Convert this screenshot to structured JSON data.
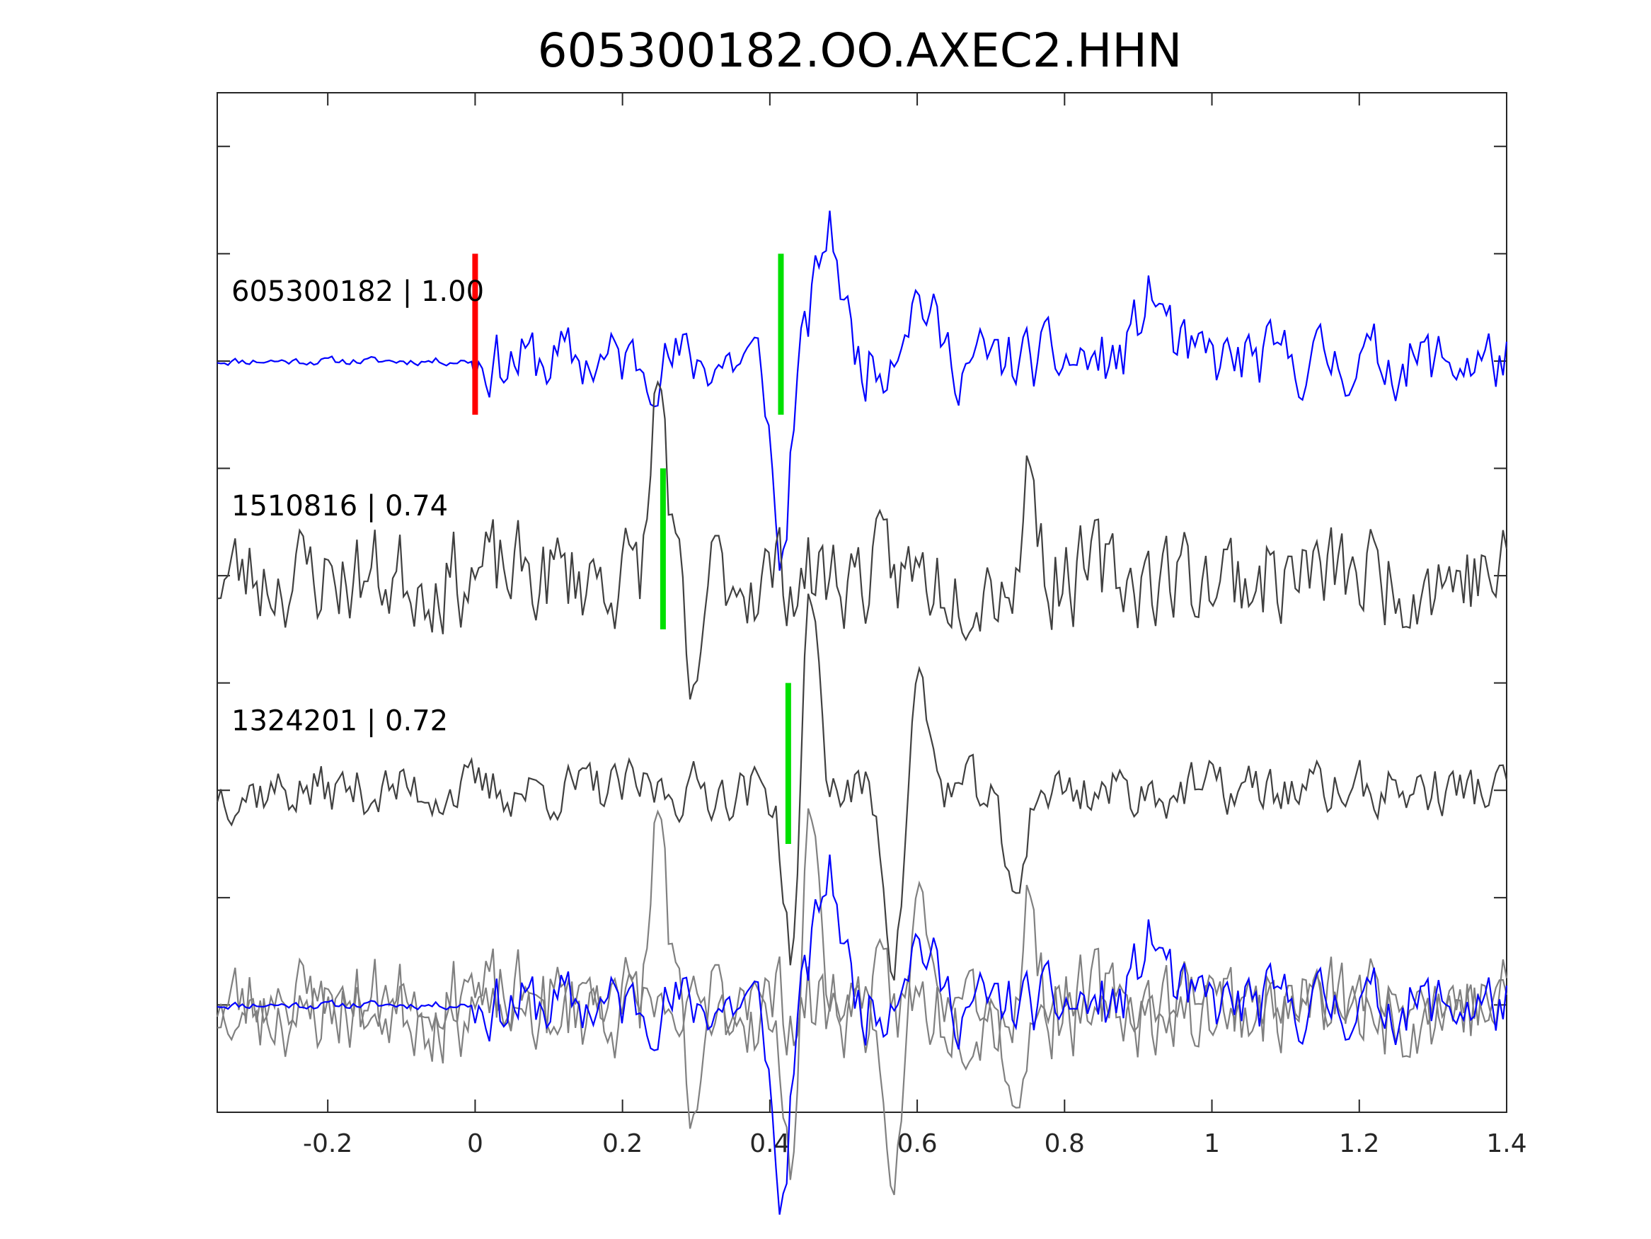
{
  "chart_data": {
    "type": "line",
    "title": "605300182.OO.AXEC2.HHN",
    "xlabel": "",
    "ylabel": "",
    "xlim": [
      -0.35,
      1.4
    ],
    "xticks": [
      -0.2,
      0,
      0.2,
      0.4,
      0.6,
      0.8,
      1,
      1.2,
      1.4
    ],
    "xtick_labels": [
      "-0.2",
      "0",
      "0.2",
      "0.4",
      "0.6",
      "0.8",
      "1",
      "1.2",
      "1.4"
    ],
    "grid": false,
    "legend": "none",
    "traces": [
      {
        "label": "605300182 | 1.00",
        "color": "#0000ff",
        "offset": 3,
        "seed": 11,
        "noise_amp": 0.25,
        "pre_noise_amp": 0.03,
        "onset": 0,
        "bursts": [
          {
            "t": 0.415,
            "amp": -0.95,
            "w": 0.012,
            "f": 12
          },
          {
            "t": 0.48,
            "amp": 0.6,
            "w": 0.02,
            "f": 9
          },
          {
            "t": 0.6,
            "amp": 0.3,
            "w": 0.03,
            "f": 10
          },
          {
            "t": 0.92,
            "amp": 0.3,
            "w": 0.025,
            "f": 10
          }
        ],
        "picks": [
          {
            "t": 0.0,
            "color": "#ff0000"
          },
          {
            "t": 0.415,
            "color": "#00e000"
          }
        ]
      },
      {
        "label": "1510816 | 0.74",
        "color": "#404040",
        "offset": 2,
        "seed": 23,
        "noise_amp": 0.38,
        "pre_noise_amp": 0.38,
        "onset": -0.35,
        "bursts": [
          {
            "t": 0.25,
            "amp": 0.9,
            "w": 0.012,
            "f": 14
          },
          {
            "t": 0.295,
            "amp": -0.75,
            "w": 0.01,
            "f": 14
          },
          {
            "t": 0.755,
            "amp": 0.55,
            "w": 0.01,
            "f": 16
          }
        ],
        "picks": [
          {
            "t": 0.255,
            "color": "#00e000"
          }
        ]
      },
      {
        "label": "1324201 | 0.72",
        "color": "#404040",
        "offset": 1,
        "seed": 37,
        "noise_amp": 0.2,
        "pre_noise_amp": 0.2,
        "onset": -0.35,
        "bursts": [
          {
            "t": 0.43,
            "amp": -0.8,
            "w": 0.012,
            "f": 12
          },
          {
            "t": 0.455,
            "amp": 0.95,
            "w": 0.012,
            "f": 12
          },
          {
            "t": 0.57,
            "amp": -0.8,
            "w": 0.015,
            "f": 10
          },
          {
            "t": 0.6,
            "amp": 0.55,
            "w": 0.015,
            "f": 10
          },
          {
            "t": 0.73,
            "amp": -0.5,
            "w": 0.015,
            "f": 10
          }
        ],
        "picks": [
          {
            "t": 0.425,
            "color": "#00e000"
          }
        ]
      }
    ],
    "overlay": {
      "offset": 0,
      "gray_color": "#808080",
      "blue_color": "#0000ff"
    },
    "ylim": [
      -0.5,
      4.25
    ]
  }
}
